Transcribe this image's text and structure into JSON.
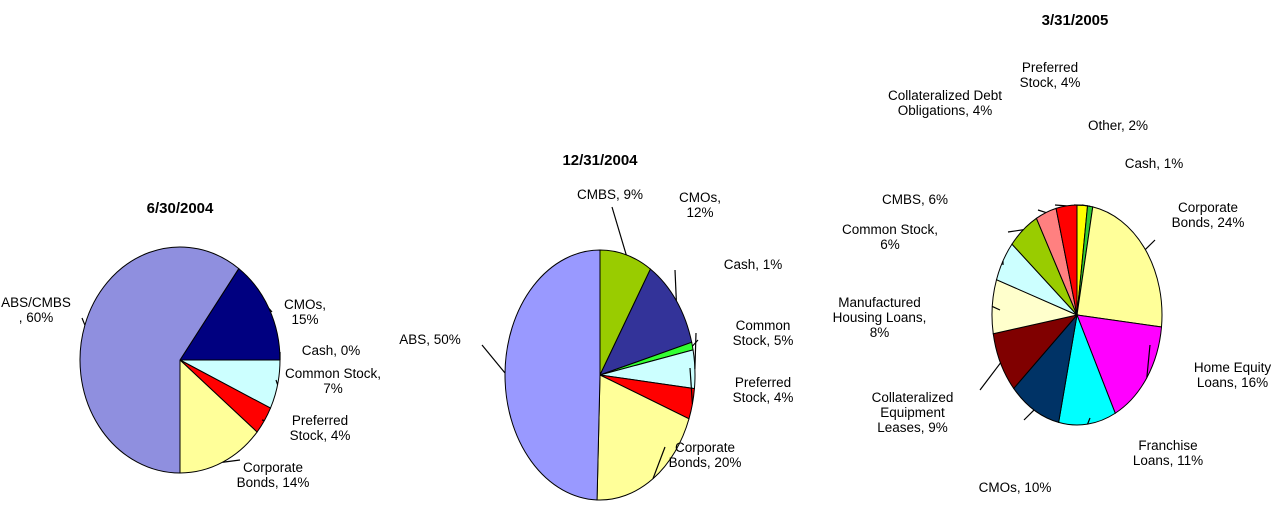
{
  "chart_data": [
    {
      "type": "pie",
      "title": "6/30/2004",
      "values": [
        15,
        0,
        7,
        4,
        14,
        60
      ],
      "value_labels": [
        "CMOs, 15%",
        "Cash, 0%",
        "Common Stock, 7%",
        "Preferred Stock, 4%",
        "Corporate Bonds, 14%",
        "ABS/CMBS , 60%"
      ],
      "colors": [
        "#000080",
        "#00cc66",
        "#ccffff",
        "#ff0000",
        "#ffff99",
        "#8f8fdf"
      ]
    },
    {
      "type": "pie",
      "title": "12/31/2004",
      "values": [
        9,
        12,
        1,
        5,
        4,
        20,
        50
      ],
      "value_labels": [
        "CMBS, 9%",
        "CMOs, 12%",
        "Cash, 1%",
        "Common Stock, 5%",
        "Preferred Stock, 4%",
        "Corporate Bonds, 20%",
        "ABS, 50%"
      ],
      "colors": [
        "#99cc00",
        "#333399",
        "#33ff33",
        "#ccffff",
        "#ff0000",
        "#ffff99",
        "#9999ff"
      ]
    },
    {
      "type": "pie",
      "title": "3/31/2005",
      "values": [
        2,
        1,
        24,
        16,
        11,
        10,
        9,
        8,
        6,
        6,
        4,
        4
      ],
      "value_labels": [
        "Other, 2%",
        "Cash, 1%",
        "Corporate Bonds, 24%",
        "Home Equity Loans, 16%",
        "Franchise Loans, 11%",
        "CMOs, 10%",
        "Collateralized Equipment Leases, 9%",
        "Manufactured Housing Loans, 8%",
        "Common Stock, 6%",
        "CMBS, 6%",
        "Collateralized Debt Obligations, 4%",
        "Preferred Stock, 4%"
      ],
      "colors": [
        "#ffff00",
        "#33cc33",
        "#ffff99",
        "#ff00ff",
        "#00ffff",
        "#003366",
        "#800000",
        "#ffffcc",
        "#ccffff",
        "#99cc00",
        "#ff8080",
        "#ff0000"
      ]
    }
  ]
}
